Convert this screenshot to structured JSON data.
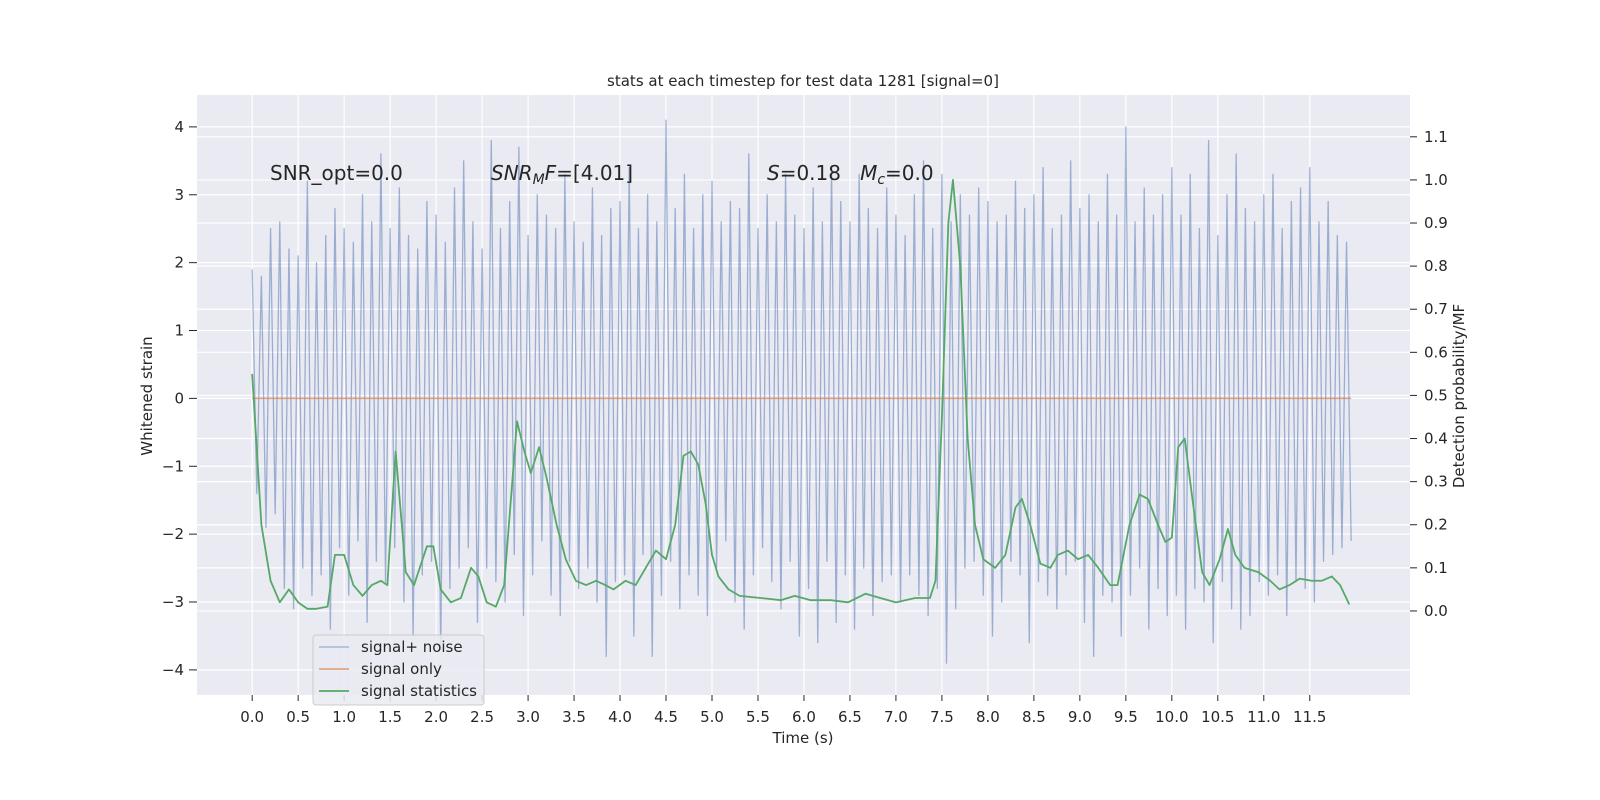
{
  "chart_data": {
    "type": "line",
    "title": "stats at each timestep for test data 1281 [signal=0]",
    "xlabel": "Time (s)",
    "ylabel": "Whitened strain",
    "y2label": "Detection probability/MF",
    "annotations": [
      [
        "SNR_opt=0.0"
      ],
      [
        "SNR",
        "M",
        "F",
        "=[4.01]"
      ],
      [
        "S",
        "=0.18   ",
        "M",
        "c",
        "=0.0"
      ]
    ],
    "xlim": [
      -0.6,
      12.59
    ],
    "ylim": [
      -4.37,
      4.47
    ],
    "y2lim": [
      -0.195,
      1.197
    ],
    "xticks": [
      {
        "value": 0,
        "label": "0.0"
      },
      {
        "value": 0.5,
        "label": "0.5"
      },
      {
        "value": 1,
        "label": "1.0"
      },
      {
        "value": 1.5,
        "label": "1.5"
      },
      {
        "value": 2,
        "label": "2.0"
      },
      {
        "value": 2.5,
        "label": "2.5"
      },
      {
        "value": 3,
        "label": "3.0"
      },
      {
        "value": 3.5,
        "label": "3.5"
      },
      {
        "value": 4,
        "label": "4.0"
      },
      {
        "value": 4.5,
        "label": "4.5"
      },
      {
        "value": 5,
        "label": "5.0"
      },
      {
        "value": 5.5,
        "label": "5.5"
      },
      {
        "value": 6,
        "label": "6.0"
      },
      {
        "value": 6.5,
        "label": "6.5"
      },
      {
        "value": 7,
        "label": "7.0"
      },
      {
        "value": 7.5,
        "label": "7.5"
      },
      {
        "value": 8,
        "label": "8.0"
      },
      {
        "value": 8.5,
        "label": "8.5"
      },
      {
        "value": 9,
        "label": "9.0"
      },
      {
        "value": 9.5,
        "label": "9.5"
      },
      {
        "value": 10,
        "label": "10.0"
      },
      {
        "value": 10.5,
        "label": "10.5"
      },
      {
        "value": 11,
        "label": "11.0"
      },
      {
        "value": 11.5,
        "label": "11.5"
      }
    ],
    "yticks": [
      {
        "value": -4,
        "label": "−4"
      },
      {
        "value": -3,
        "label": "−3"
      },
      {
        "value": -2,
        "label": "−2"
      },
      {
        "value": -1,
        "label": "−1"
      },
      0,
      1,
      2,
      3,
      4
    ],
    "y2ticks": [
      {
        "value": 0,
        "label": "0.0"
      },
      {
        "value": 0.1,
        "label": "0.1"
      },
      {
        "value": 0.2,
        "label": "0.2"
      },
      {
        "value": 0.3,
        "label": "0.3"
      },
      {
        "value": 0.4,
        "label": "0.4"
      },
      {
        "value": 0.5,
        "label": "0.5"
      },
      {
        "value": 0.6,
        "label": "0.6"
      },
      {
        "value": 0.7,
        "label": "0.7"
      },
      {
        "value": 0.8,
        "label": "0.8"
      },
      {
        "value": 0.9,
        "label": "0.9"
      },
      {
        "value": 1,
        "label": "1.0"
      },
      {
        "value": 1.1,
        "label": "1.1"
      }
    ],
    "grid": true,
    "legend": "lower left",
    "series": [
      {
        "name": "signal+ noise",
        "color": "#4c72b0",
        "x": [
          0,
          0.05,
          0.1,
          0.15,
          0.2,
          0.25,
          0.3,
          0.35,
          0.4,
          0.45,
          0.5,
          0.55,
          0.6,
          0.65,
          0.7,
          0.75,
          0.8,
          0.85,
          0.9,
          0.95,
          1,
          1.05,
          1.1,
          1.15,
          1.2,
          1.25,
          1.3,
          1.35,
          1.4,
          1.45,
          1.5,
          1.55,
          1.6,
          1.65,
          1.7,
          1.75,
          1.8,
          1.85,
          1.9,
          1.95,
          2,
          2.05,
          2.1,
          2.15,
          2.2,
          2.25,
          2.3,
          2.35,
          2.4,
          2.45,
          2.5,
          2.55,
          2.6,
          2.65,
          2.7,
          2.75,
          2.8,
          2.85,
          2.9,
          2.95,
          3,
          3.05,
          3.1,
          3.15,
          3.2,
          3.25,
          3.3,
          3.35,
          3.4,
          3.45,
          3.5,
          3.55,
          3.6,
          3.65,
          3.7,
          3.75,
          3.8,
          3.85,
          3.9,
          3.95,
          4,
          4.05,
          4.1,
          4.15,
          4.2,
          4.25,
          4.3,
          4.35,
          4.4,
          4.45,
          4.5,
          4.55,
          4.6,
          4.65,
          4.7,
          4.75,
          4.8,
          4.85,
          4.9,
          4.95,
          5,
          5.05,
          5.1,
          5.15,
          5.2,
          5.25,
          5.3,
          5.35,
          5.4,
          5.45,
          5.5,
          5.55,
          5.6,
          5.65,
          5.7,
          5.75,
          5.8,
          5.85,
          5.9,
          5.95,
          6,
          6.05,
          6.1,
          6.15,
          6.2,
          6.25,
          6.3,
          6.35,
          6.4,
          6.45,
          6.5,
          6.55,
          6.6,
          6.65,
          6.7,
          6.75,
          6.8,
          6.85,
          6.9,
          6.95,
          7,
          7.05,
          7.1,
          7.15,
          7.2,
          7.25,
          7.3,
          7.35,
          7.4,
          7.45,
          7.5,
          7.55,
          7.6,
          7.65,
          7.7,
          7.75,
          7.8,
          7.85,
          7.9,
          7.95,
          8,
          8.05,
          8.1,
          8.15,
          8.2,
          8.25,
          8.3,
          8.35,
          8.4,
          8.45,
          8.5,
          8.55,
          8.6,
          8.65,
          8.7,
          8.75,
          8.8,
          8.85,
          8.9,
          8.95,
          9,
          9.05,
          9.1,
          9.15,
          9.2,
          9.25,
          9.3,
          9.35,
          9.4,
          9.45,
          9.5,
          9.55,
          9.6,
          9.65,
          9.7,
          9.75,
          9.8,
          9.85,
          9.9,
          9.95,
          10,
          10.05,
          10.1,
          10.15,
          10.2,
          10.25,
          10.3,
          10.35,
          10.4,
          10.45,
          10.5,
          10.55,
          10.6,
          10.65,
          10.7,
          10.75,
          10.8,
          10.85,
          10.9,
          10.95,
          11,
          11.05,
          11.1,
          11.15,
          11.2,
          11.25,
          11.3,
          11.35,
          11.4,
          11.45,
          11.5,
          11.55,
          11.6,
          11.65,
          11.7,
          11.75,
          11.8,
          11.85,
          11.9,
          11.95
        ],
        "values": [
          1.9,
          -1.4,
          1.8,
          -1.9,
          2.5,
          -1.7,
          2.6,
          -2.8,
          2.2,
          -3.1,
          2.1,
          -2.5,
          3.2,
          -2.9,
          2.0,
          -2.6,
          2.4,
          -3.4,
          2.8,
          -2.2,
          2.5,
          -2.9,
          2.3,
          -2.1,
          3.0,
          -3.3,
          2.6,
          -2.4,
          3.6,
          -2.7,
          2.5,
          -2.2,
          3.1,
          -3.0,
          2.4,
          -3.5,
          2.2,
          -2.6,
          2.9,
          -2.4,
          2.7,
          -3.7,
          2.3,
          -2.8,
          3.1,
          -2.5,
          3.5,
          -2.2,
          2.6,
          -3.3,
          2.2,
          -2.5,
          3.8,
          -2.7,
          2.5,
          -3.0,
          2.9,
          -2.3,
          3.7,
          -3.2,
          2.4,
          -2.6,
          3.0,
          -2.1,
          2.7,
          -2.9,
          2.5,
          -3.2,
          3.3,
          -2.4,
          2.6,
          -2.8,
          2.3,
          -2.5,
          3.1,
          -3.0,
          2.4,
          -3.8,
          2.8,
          -2.7,
          2.9,
          -2.6,
          3.4,
          -3.5,
          2.5,
          -2.3,
          3.0,
          -3.8,
          2.6,
          -2.9,
          4.1,
          -2.4,
          2.8,
          -3.1,
          3.3,
          -2.6,
          2.5,
          -2.9,
          3.0,
          -3.2,
          3.2,
          -2.5,
          2.6,
          -2.1,
          2.9,
          -3.0,
          2.8,
          -3.4,
          3.6,
          -2.6,
          2.5,
          -2.2,
          3.0,
          -2.7,
          2.6,
          -3.1,
          3.3,
          -2.4,
          2.7,
          -3.5,
          2.5,
          -2.8,
          3.1,
          -3.6,
          2.6,
          -2.4,
          3.4,
          -3.3,
          2.9,
          -2.6,
          2.6,
          -3.4,
          3.3,
          -2.5,
          2.8,
          -3.2,
          2.5,
          -2.7,
          3.1,
          -2.6,
          2.7,
          -3.0,
          2.4,
          -2.6,
          3.0,
          -2.9,
          3.5,
          -3.2,
          2.5,
          -2.8,
          3.3,
          -3.9,
          2.6,
          -3.1,
          3.0,
          -2.5,
          2.7,
          -2.4,
          3.1,
          -2.9,
          2.9,
          -3.5,
          2.6,
          -3.0,
          2.7,
          -2.4,
          3.2,
          -2.6,
          2.8,
          -3.6,
          3.0,
          -2.7,
          3.4,
          -2.9,
          2.5,
          -3.1,
          2.7,
          -2.6,
          3.5,
          -2.4,
          2.8,
          -3.3,
          3.0,
          -3.8,
          2.6,
          -2.9,
          3.3,
          -3.0,
          2.7,
          -3.5,
          4.0,
          -2.9,
          2.6,
          -2.5,
          3.1,
          -3.4,
          2.7,
          -2.8,
          3.0,
          -3.2,
          3.4,
          -2.9,
          2.7,
          -3.4,
          3.3,
          -2.8,
          2.5,
          -3.0,
          3.8,
          -3.6,
          2.4,
          -2.7,
          3.0,
          -3.1,
          3.6,
          -3.4,
          2.8,
          -3.2,
          2.6,
          -2.7,
          3.0,
          -2.9,
          3.3,
          -2.6,
          2.5,
          -3.2,
          2.9,
          -2.7,
          3.1,
          -2.8,
          3.4,
          -3.0,
          2.6,
          -2.4,
          2.9,
          -2.3,
          2.4,
          -2.2,
          2.3,
          -2.1
        ]
      },
      {
        "name": "signal only",
        "color": "#dd8452",
        "x": [
          0,
          11.95
        ],
        "values": [
          0,
          0
        ]
      },
      {
        "name": "signal statistics",
        "color": "#55a868",
        "axis": "y2",
        "x": [
          0,
          0.1,
          0.2,
          0.3,
          0.4,
          0.5,
          0.6,
          0.7,
          0.82,
          0.9,
          1.0,
          1.1,
          1.2,
          1.3,
          1.4,
          1.47,
          1.56,
          1.67,
          1.76,
          1.9,
          1.97,
          2.05,
          2.16,
          2.27,
          2.38,
          2.46,
          2.55,
          2.65,
          2.74,
          2.88,
          2.96,
          3.03,
          3.12,
          3.2,
          3.31,
          3.41,
          3.52,
          3.63,
          3.74,
          3.84,
          3.93,
          4.06,
          4.17,
          4.28,
          4.39,
          4.5,
          4.6,
          4.69,
          4.77,
          4.85,
          4.93,
          5.0,
          5.07,
          5.18,
          5.3,
          5.53,
          5.75,
          5.9,
          6.07,
          6.29,
          6.48,
          6.67,
          6.83,
          7.0,
          7.21,
          7.37,
          7.43,
          7.5,
          7.57,
          7.62,
          7.7,
          7.78,
          7.86,
          7.95,
          8.08,
          8.19,
          8.3,
          8.37,
          8.46,
          8.57,
          8.68,
          8.76,
          8.87,
          8.98,
          9.09,
          9.2,
          9.33,
          9.41,
          9.54,
          9.65,
          9.74,
          9.85,
          9.93,
          10.0,
          10.07,
          10.14,
          10.23,
          10.33,
          10.41,
          10.52,
          10.61,
          10.69,
          10.79,
          10.94,
          11.07,
          11.17,
          11.28,
          11.39,
          11.52,
          11.63,
          11.74,
          11.83,
          11.93
        ],
        "values": [
          0.55,
          0.2,
          0.07,
          0.02,
          0.05,
          0.02,
          0.005,
          0.005,
          0.01,
          0.13,
          0.13,
          0.06,
          0.035,
          0.06,
          0.07,
          0.06,
          0.37,
          0.09,
          0.06,
          0.15,
          0.15,
          0.05,
          0.02,
          0.03,
          0.1,
          0.08,
          0.02,
          0.01,
          0.06,
          0.44,
          0.37,
          0.32,
          0.38,
          0.31,
          0.2,
          0.12,
          0.07,
          0.06,
          0.07,
          0.06,
          0.05,
          0.07,
          0.06,
          0.1,
          0.14,
          0.12,
          0.2,
          0.36,
          0.37,
          0.34,
          0.25,
          0.13,
          0.08,
          0.05,
          0.035,
          0.03,
          0.025,
          0.035,
          0.025,
          0.025,
          0.02,
          0.04,
          0.03,
          0.02,
          0.03,
          0.03,
          0.07,
          0.45,
          0.9,
          1.0,
          0.8,
          0.4,
          0.2,
          0.12,
          0.1,
          0.13,
          0.24,
          0.26,
          0.2,
          0.11,
          0.1,
          0.13,
          0.14,
          0.12,
          0.13,
          0.1,
          0.06,
          0.06,
          0.2,
          0.27,
          0.26,
          0.2,
          0.16,
          0.17,
          0.38,
          0.4,
          0.25,
          0.09,
          0.06,
          0.12,
          0.19,
          0.13,
          0.1,
          0.09,
          0.07,
          0.05,
          0.06,
          0.075,
          0.07,
          0.07,
          0.08,
          0.06,
          0.015
        ]
      }
    ]
  }
}
